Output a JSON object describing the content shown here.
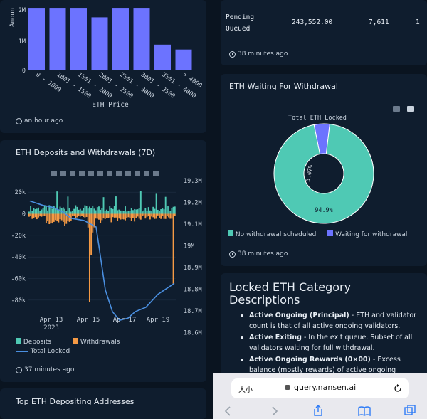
{
  "top_left": {
    "y_label": "Amount",
    "y_ticks": [
      "2M",
      "1M",
      "0"
    ],
    "x_label": "ETH Price",
    "timestamp": "an hour ago"
  },
  "chart_data": [
    {
      "type": "bar",
      "title": "",
      "xlabel": "ETH Price",
      "ylabel": "Amount",
      "categories": [
        "0 - 1000",
        "1001 - 1500",
        "1501 - 2000",
        "2001 - 2500",
        "2501 - 3000",
        "3001 - 3500",
        "3501 - 4000",
        "> 4000"
      ],
      "values": [
        2150000,
        2150000,
        2150000,
        1820000,
        2150000,
        2150000,
        870000,
        700000
      ],
      "ylim": [
        0,
        2300000
      ],
      "color": "#6c73ff"
    },
    {
      "type": "bar",
      "title": "ETH Deposits and Withdrawals (7D)",
      "y_ticks_left": [
        "20k",
        "0",
        "-20k",
        "-40k",
        "-60k",
        "-80k"
      ],
      "y_ticks_right": [
        "19.3M",
        "19.2M",
        "19.1M",
        "19M",
        "18.9M",
        "18.8M",
        "18.7M",
        "18.6M"
      ],
      "x_ticks": [
        "Apr 13\n2023",
        "Apr 15",
        "Apr 17",
        "Apr 19"
      ],
      "series": [
        {
          "name": "Deposits",
          "color": "#4fc9b4"
        },
        {
          "name": "Withdrawals",
          "color": "#f59a45"
        },
        {
          "name": "Total Locked",
          "color": "#4a8fe0"
        }
      ],
      "ylim": [
        -90000,
        30000
      ]
    },
    {
      "type": "pie",
      "title": "ETH Waiting For Withdrawal",
      "center_label": "Total ETH Locked",
      "slices": [
        {
          "name": "No withdrawal scheduled",
          "value": 94.9,
          "label": "94.9%",
          "color": "#4fc9b4"
        },
        {
          "name": "Waiting for withdrawal",
          "value": 5.07,
          "label": "5.07%",
          "color": "#6c73ff"
        }
      ]
    }
  ],
  "deposits": {
    "title": "ETH Deposits and Withdrawals (7D)",
    "legend": {
      "deposits": "Deposits",
      "withdrawals": "Withdrawals",
      "total_locked": "Total Locked"
    },
    "timestamp": "37 minutes ago"
  },
  "top_depositing": {
    "title": "Top ETH Depositing Addresses"
  },
  "pending": {
    "label_line1": "Pending",
    "label_line2": "Queued",
    "value1": "243,552.00",
    "value2": "7,611",
    "value3": "1",
    "timestamp": "38 minutes ago"
  },
  "waiting": {
    "title": "ETH Waiting For Withdrawal",
    "center_label": "Total ETH Locked",
    "pct_big": "94.9%",
    "pct_small": "5.07%",
    "legend_a": "No withdrawal scheduled",
    "legend_b": "Waiting for withdrawal",
    "timestamp": "38 minutes ago"
  },
  "locked": {
    "title_line1": "Locked ETH Category",
    "title_line2": "Descriptions",
    "items": [
      {
        "term": "Active Ongoing (Principal)",
        "line1": " - ETH and validator",
        "line2": "count is that of all active ongoing validators."
      },
      {
        "term": "Active Exiting",
        "line1": " - In the exit queue. Subset of all",
        "line2": "validators waiting for full withdrawal."
      },
      {
        "term": "Active Ongoing Rewards (0×00)",
        "line1": " - Excess",
        "line2": "balance (mostly rewards) of active ongoing"
      }
    ]
  },
  "browser": {
    "text_size": "大小",
    "url": "query.nansen.ai"
  }
}
